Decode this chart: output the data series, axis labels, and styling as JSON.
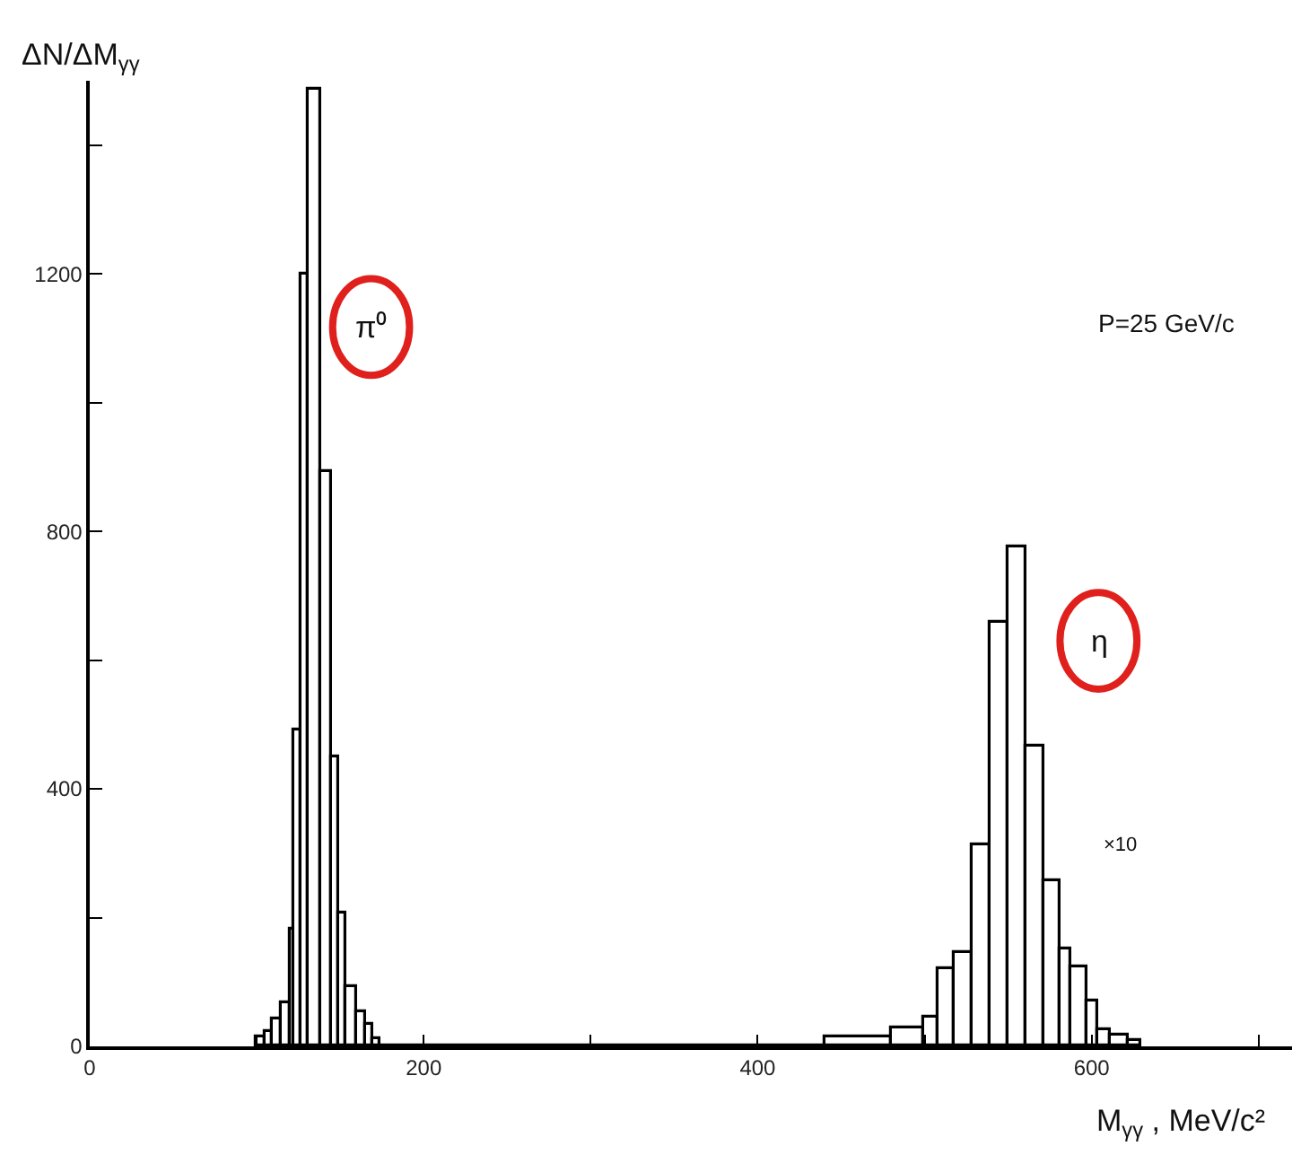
{
  "chart_data": {
    "type": "histogram",
    "ylabel": "ΔN/ΔM$_{γγ}$",
    "xlabel": "M$_{γγ}$ , MeV/c²",
    "bins": [
      100,
      105,
      110,
      115,
      120,
      123,
      127,
      131,
      139,
      145,
      149,
      154,
      160,
      166,
      170,
      174,
      441,
      480,
      500,
      508,
      518,
      529,
      539,
      550,
      561,
      572,
      581,
      588,
      597,
      604,
      611,
      622,
      630
    ],
    "values": [
      15,
      23,
      42,
      67,
      182,
      490,
      1200,
      1485,
      892,
      450,
      206,
      92,
      53,
      33,
      12,
      0,
      15,
      28,
      44,
      120,
      145,
      311,
      657,
      776,
      465,
      257,
      151,
      123,
      69,
      25,
      16,
      8
    ],
    "color": "#000000",
    "xlim": [
      0,
      720
    ],
    "xticks": [
      0,
      {
        "value": 100,
        "label": null
      },
      200,
      {
        "value": 300,
        "label": null
      },
      400,
      {
        "value": 500,
        "label": null
      },
      600,
      {
        "value": 700,
        "label": null
      }
    ],
    "ylim": [
      0,
      1500
    ],
    "yticks": [
      0,
      {
        "value": 200,
        "label": null
      },
      400,
      {
        "value": 600,
        "label": null
      },
      800,
      {
        "value": 1000,
        "label": null
      },
      1200,
      {
        "value": 1400,
        "label": null
      }
    ],
    "annotations": [
      "π⁰",
      "η",
      "×10",
      "P=25 GeV/c"
    ]
  }
}
